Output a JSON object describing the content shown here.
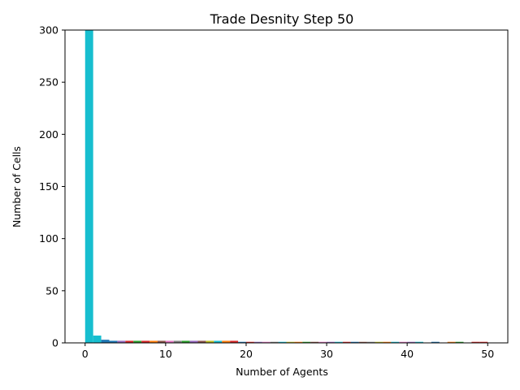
{
  "chart_data": {
    "type": "bar",
    "title": "Trade Desnity Step 50",
    "xlabel": "Number of Agents",
    "ylabel": "Number of Cells",
    "xlim": [
      -2.5,
      52.5
    ],
    "ylim": [
      0,
      300
    ],
    "xticks": [
      0,
      10,
      20,
      30,
      40,
      50
    ],
    "yticks": [
      0,
      50,
      100,
      150,
      200,
      250,
      300
    ],
    "grid": false,
    "bin_width": 1,
    "bins": [
      {
        "x": 0,
        "value": 300,
        "color": "#17becf"
      },
      {
        "x": 1,
        "value": 7,
        "color": "#17becf"
      },
      {
        "x": 2,
        "value": 3,
        "color": "#1f77b4"
      },
      {
        "x": 3,
        "value": 2,
        "color": "#1f77b4"
      },
      {
        "x": 4,
        "value": 2,
        "color": "#9467bd"
      },
      {
        "x": 5,
        "value": 2,
        "color": "#d62728"
      },
      {
        "x": 6,
        "value": 2,
        "color": "#2ca02c"
      },
      {
        "x": 7,
        "value": 2,
        "color": "#d62728"
      },
      {
        "x": 8,
        "value": 2,
        "color": "#ff7f0e"
      },
      {
        "x": 9,
        "value": 2,
        "color": "#8c564b"
      },
      {
        "x": 10,
        "value": 2,
        "color": "#e377c2"
      },
      {
        "x": 11,
        "value": 2,
        "color": "#7f7f7f"
      },
      {
        "x": 12,
        "value": 2,
        "color": "#2ca02c"
      },
      {
        "x": 13,
        "value": 2,
        "color": "#9467bd"
      },
      {
        "x": 14,
        "value": 2,
        "color": "#8c564b"
      },
      {
        "x": 15,
        "value": 2,
        "color": "#bcbd22"
      },
      {
        "x": 16,
        "value": 2,
        "color": "#17becf"
      },
      {
        "x": 17,
        "value": 2,
        "color": "#ff7f0e"
      },
      {
        "x": 18,
        "value": 2,
        "color": "#d62728"
      },
      {
        "x": 19,
        "value": 1,
        "color": "#1f77b4"
      },
      {
        "x": 20,
        "value": 1,
        "color": "#d62728"
      },
      {
        "x": 21,
        "value": 1,
        "color": "#9467bd"
      },
      {
        "x": 22,
        "value": 1,
        "color": "#e377c2"
      },
      {
        "x": 23,
        "value": 1,
        "color": "#7f7f7f"
      },
      {
        "x": 24,
        "value": 1,
        "color": "#17becf"
      },
      {
        "x": 25,
        "value": 1,
        "color": "#bcbd22"
      },
      {
        "x": 26,
        "value": 1,
        "color": "#ff7f0e"
      },
      {
        "x": 27,
        "value": 1,
        "color": "#2ca02c"
      },
      {
        "x": 28,
        "value": 1,
        "color": "#8c564b"
      },
      {
        "x": 29,
        "value": 1,
        "color": "#e377c2"
      },
      {
        "x": 30,
        "value": 1,
        "color": "#9467bd"
      },
      {
        "x": 31,
        "value": 1,
        "color": "#17becf"
      },
      {
        "x": 32,
        "value": 1,
        "color": "#d62728"
      },
      {
        "x": 33,
        "value": 1,
        "color": "#1f77b4"
      },
      {
        "x": 34,
        "value": 1,
        "color": "#8c564b"
      },
      {
        "x": 35,
        "value": 1,
        "color": "#7f7f7f"
      },
      {
        "x": 36,
        "value": 1,
        "color": "#bcbd22"
      },
      {
        "x": 37,
        "value": 1,
        "color": "#ff7f0e"
      },
      {
        "x": 38,
        "value": 1,
        "color": "#17becf"
      },
      {
        "x": 39,
        "value": 1,
        "color": "#e377c2"
      },
      {
        "x": 40,
        "value": 1,
        "color": "#9467bd"
      },
      {
        "x": 41,
        "value": 1,
        "color": "#17becf"
      },
      {
        "x": 43,
        "value": 1,
        "color": "#1f77b4"
      },
      {
        "x": 45,
        "value": 1,
        "color": "#ff7f0e"
      },
      {
        "x": 46,
        "value": 1,
        "color": "#2ca02c"
      },
      {
        "x": 48,
        "value": 1,
        "color": "#d62728"
      },
      {
        "x": 49,
        "value": 1,
        "color": "#d62728"
      }
    ]
  }
}
